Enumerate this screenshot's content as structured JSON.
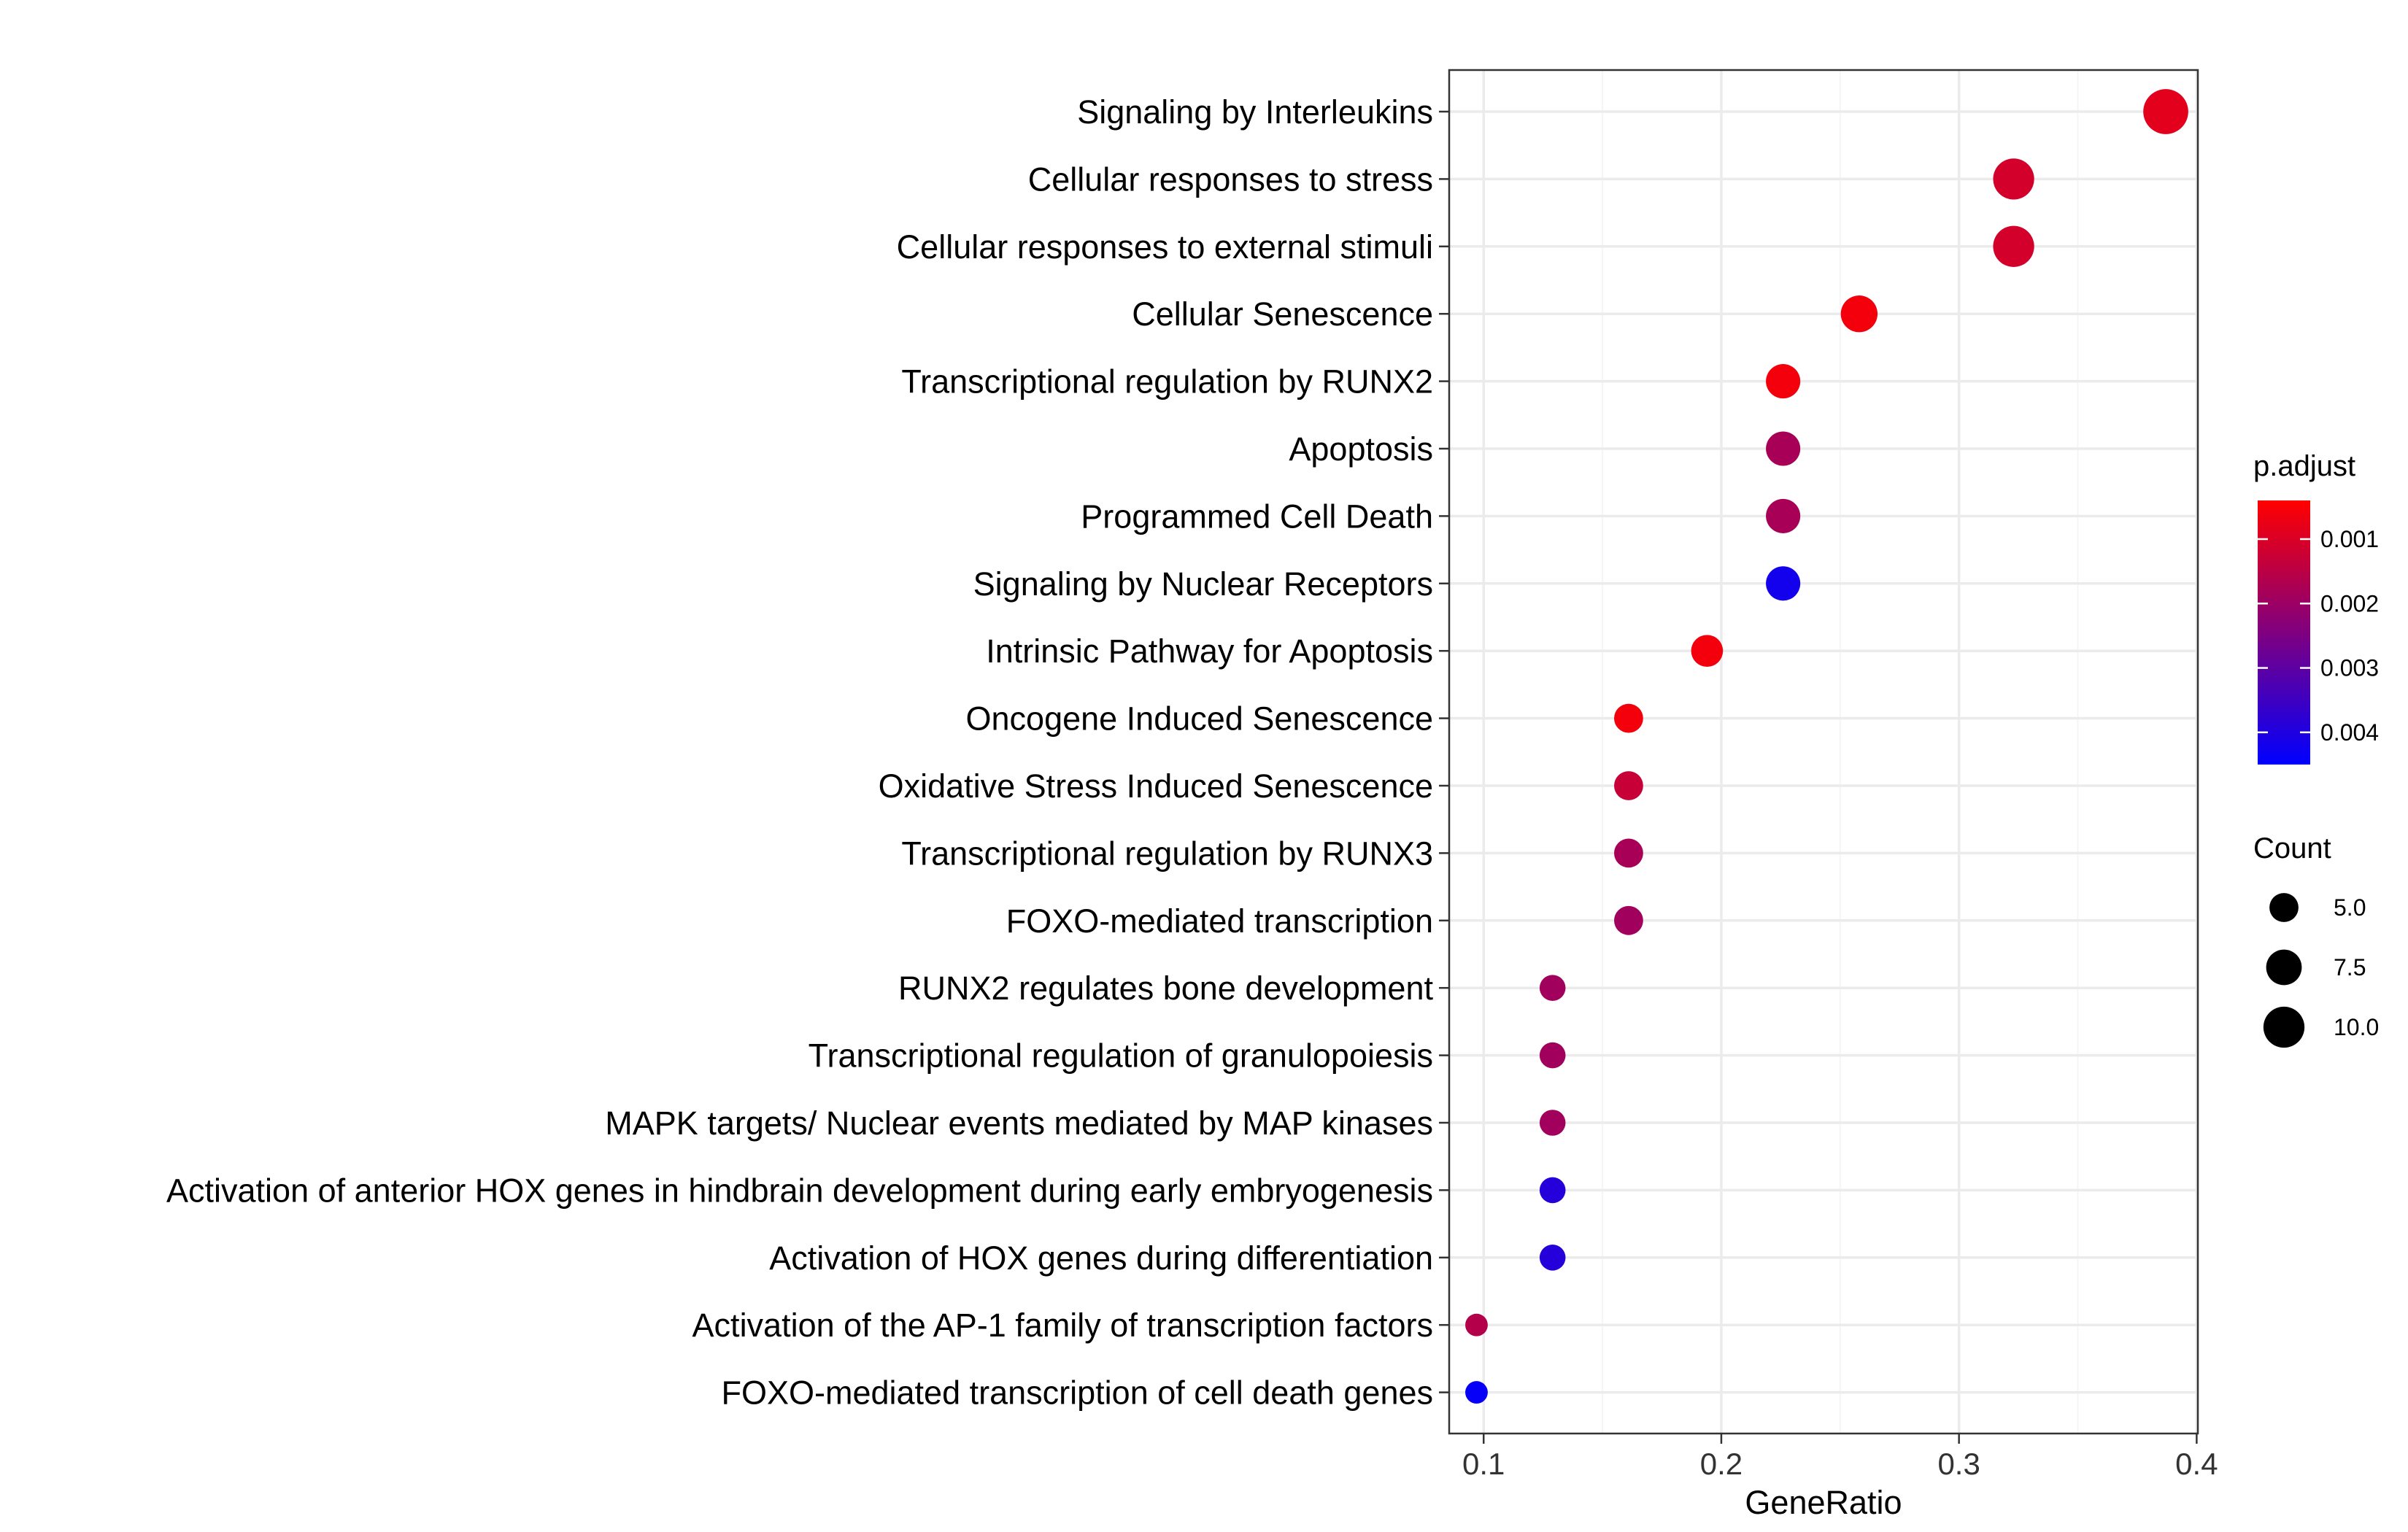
{
  "chart_data": {
    "type": "scatter",
    "xlabel": "GeneRatio",
    "ylabel": "",
    "xlim": [
      0.0855,
      0.4005
    ],
    "x_ticks": [
      0.1,
      0.2,
      0.3,
      0.4
    ],
    "x_tick_labels": [
      "0.1",
      "0.2",
      "0.3",
      "0.4"
    ],
    "grid": true,
    "legend_placement": "right",
    "points": [
      {
        "term": "Signaling by Interleukins",
        "gene_ratio": 0.387,
        "count": 12,
        "p_adjust": 0.00085
      },
      {
        "term": "Cellular responses to stress",
        "gene_ratio": 0.323,
        "count": 10,
        "p_adjust": 0.0011
      },
      {
        "term": "Cellular responses to external stimuli",
        "gene_ratio": 0.323,
        "count": 10,
        "p_adjust": 0.0011
      },
      {
        "term": "Cellular Senescence",
        "gene_ratio": 0.258,
        "count": 8,
        "p_adjust": 0.0006
      },
      {
        "term": "Transcriptional regulation by RUNX2",
        "gene_ratio": 0.226,
        "count": 7,
        "p_adjust": 0.0006
      },
      {
        "term": "Apoptosis",
        "gene_ratio": 0.226,
        "count": 7,
        "p_adjust": 0.0018
      },
      {
        "term": "Programmed Cell Death",
        "gene_ratio": 0.226,
        "count": 7,
        "p_adjust": 0.0018
      },
      {
        "term": "Signaling by Nuclear Receptors",
        "gene_ratio": 0.226,
        "count": 7,
        "p_adjust": 0.0042
      },
      {
        "term": "Intrinsic Pathway for Apoptosis",
        "gene_ratio": 0.194,
        "count": 6,
        "p_adjust": 0.0006
      },
      {
        "term": "Oncogene Induced Senescence",
        "gene_ratio": 0.161,
        "count": 5,
        "p_adjust": 0.0006
      },
      {
        "term": "Oxidative Stress Induced Senescence",
        "gene_ratio": 0.161,
        "count": 5,
        "p_adjust": 0.0013
      },
      {
        "term": "Transcriptional regulation by RUNX3",
        "gene_ratio": 0.161,
        "count": 5,
        "p_adjust": 0.0018
      },
      {
        "term": "FOXO-mediated transcription",
        "gene_ratio": 0.161,
        "count": 5,
        "p_adjust": 0.0019
      },
      {
        "term": "RUNX2 regulates bone development",
        "gene_ratio": 0.129,
        "count": 4,
        "p_adjust": 0.0019
      },
      {
        "term": "Transcriptional regulation of granulopoiesis",
        "gene_ratio": 0.129,
        "count": 4,
        "p_adjust": 0.0019
      },
      {
        "term": "MAPK targets/ Nuclear events mediated by MAP kinases",
        "gene_ratio": 0.129,
        "count": 4,
        "p_adjust": 0.0019
      },
      {
        "term": "Activation of anterior HOX genes in hindbrain development during early embryogenesis",
        "gene_ratio": 0.129,
        "count": 4,
        "p_adjust": 0.0039
      },
      {
        "term": "Activation of HOX genes during differentiation",
        "gene_ratio": 0.129,
        "count": 4,
        "p_adjust": 0.0039
      },
      {
        "term": "Activation of the AP-1 family of transcription factors",
        "gene_ratio": 0.097,
        "count": 3,
        "p_adjust": 0.0016
      },
      {
        "term": "FOXO-mediated transcription of cell death genes",
        "gene_ratio": 0.097,
        "count": 3,
        "p_adjust": 0.0044
      }
    ],
    "color_legend": {
      "title": "p.adjust",
      "min": 0.0004,
      "max": 0.0045,
      "low_color": "#ff0000",
      "high_color": "#0000ff",
      "ticks": [
        0.001,
        0.002,
        0.003,
        0.004
      ],
      "tick_labels": [
        "0.001",
        "0.002",
        "0.003",
        "0.004"
      ]
    },
    "size_legend": {
      "title": "Count",
      "values": [
        5.0,
        7.5,
        10.0
      ],
      "labels": [
        "5.0",
        "7.5",
        "10.0"
      ],
      "color": "#000000"
    },
    "colors": {
      "panel_border": "#333333",
      "grid_major": "#ebebeb",
      "grid_minor": "#f5f5f5"
    }
  }
}
